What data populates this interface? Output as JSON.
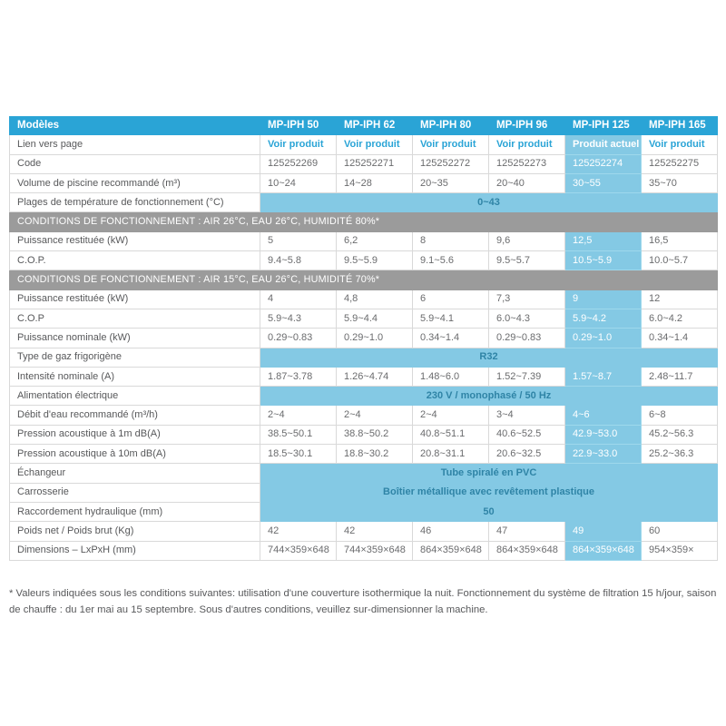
{
  "table": {
    "corner_label": "Modèles",
    "columns": [
      "MP-IPH 50",
      "MP-IPH 62",
      "MP-IPH 80",
      "MP-IPH 96",
      "MP-IPH 125",
      "MP-IPH 165"
    ],
    "highlight_index": 4,
    "rows": [
      {
        "type": "link",
        "label": "Lien vers page",
        "values": [
          "Voir produit",
          "Voir produit",
          "Voir produit",
          "Voir produit",
          "Produit actuel",
          "Voir produit"
        ]
      },
      {
        "type": "data",
        "label": "Code",
        "values": [
          "125252269",
          "125252271",
          "125252272",
          "125252273",
          "125252274",
          "125252275"
        ]
      },
      {
        "type": "data",
        "label": "Volume de piscine recommandé (m³)",
        "values": [
          "10~24",
          "14~28",
          "20~35",
          "20~40",
          "30~55",
          "35~70"
        ]
      },
      {
        "type": "span",
        "label": "Plages de température de fonctionnement (°C)",
        "value": "0~43"
      },
      {
        "type": "section",
        "label": "CONDITIONS DE FONCTIONNEMENT : AIR 26°C, EAU 26°C, HUMIDITÉ 80%*"
      },
      {
        "type": "data",
        "label": "Puissance restituée (kW)",
        "values": [
          "5",
          "6,2",
          "8",
          "9,6",
          "12,5",
          "16,5"
        ]
      },
      {
        "type": "data",
        "label": "C.O.P.",
        "values": [
          "9.4~5.8",
          "9.5~5.9",
          "9.1~5.6",
          "9.5~5.7",
          "10.5~5.9",
          "10.0~5.7"
        ]
      },
      {
        "type": "section",
        "label": "CONDITIONS DE FONCTIONNEMENT : AIR 15°C, EAU 26°C, HUMIDITÉ 70%*"
      },
      {
        "type": "data",
        "label": "Puissance restituée (kW)",
        "values": [
          "4",
          "4,8",
          "6",
          "7,3",
          "9",
          "12"
        ]
      },
      {
        "type": "data",
        "label": "C.O.P",
        "values": [
          "5.9~4.3",
          "5.9~4.4",
          "5.9~4.1",
          "6.0~4.3",
          "5.9~4.2",
          "6.0~4.2"
        ]
      },
      {
        "type": "data",
        "label": "Puissance nominale (kW)",
        "values": [
          "0.29~0.83",
          "0.29~1.0",
          "0.34~1.4",
          "0.29~0.83",
          "0.29~1.0",
          "0.34~1.4"
        ]
      },
      {
        "type": "span",
        "label": "Type de gaz frigorigène",
        "value": "R32"
      },
      {
        "type": "data",
        "label": "Intensité nominale (A)",
        "values": [
          "1.87~3.78",
          "1.26~4.74",
          "1.48~6.0",
          "1.52~7.39",
          "1.57~8.7",
          "2.48~11.7"
        ]
      },
      {
        "type": "span",
        "label": "Alimentation électrique",
        "value": "230 V / monophasé / 50 Hz"
      },
      {
        "type": "data",
        "label": "Débit d'eau recommandé (m³/h)",
        "values": [
          "2~4",
          "2~4",
          "2~4",
          "3~4",
          "4~6",
          "6~8"
        ]
      },
      {
        "type": "data",
        "label": "Pression acoustique à 1m dB(A)",
        "values": [
          "38.5~50.1",
          "38.8~50.2",
          "40.8~51.1",
          "40.6~52.5",
          "42.9~53.0",
          "45.2~56.3"
        ]
      },
      {
        "type": "data",
        "label": "Pression acoustique à 10m dB(A)",
        "values": [
          "18.5~30.1",
          "18.8~30.2",
          "20.8~31.1",
          "20.6~32.5",
          "22.9~33.0",
          "25.2~36.3"
        ]
      },
      {
        "type": "span",
        "label": "Échangeur",
        "value": "Tube spiralé en PVC"
      },
      {
        "type": "span",
        "label": "Carrosserie",
        "value": "Boîtier métallique avec revêtement plastique"
      },
      {
        "type": "span",
        "label": "Raccordement hydraulique (mm)",
        "value": "50"
      },
      {
        "type": "data",
        "label": "Poids net / Poids brut (Kg)",
        "values": [
          "42",
          "42",
          "46",
          "47",
          "49",
          "60"
        ]
      },
      {
        "type": "data",
        "label": "Dimensions – LxPxH (mm)",
        "values": [
          "744×359×648",
          "744×359×648",
          "864×359×648",
          "864×359×648",
          "864×359×648",
          "954×359×"
        ]
      }
    ]
  },
  "footnote": "* Valeurs indiquées sous les conditions suivantes: utilisation d'une couverture isothermique la nuit. Fonctionnement du système de filtration 15 h/jour, saison de chauffe : du 1er mai au 15 septembre. Sous d'autres conditions, veuillez sur-dimensionner la machine.",
  "colors": {
    "header_bg": "#2aa4d6",
    "highlight_bg": "#84c9e4",
    "span_bg": "#84c9e4",
    "span_text": "#2f84a6",
    "section_bg": "#9b9b9b",
    "link": "#2aa4d6"
  }
}
